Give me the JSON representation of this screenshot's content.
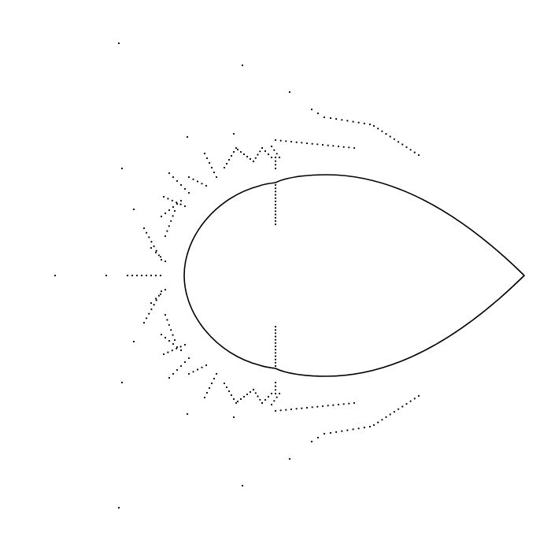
{
  "colors": {
    "background": "#ffffff",
    "ink": "#000000"
  },
  "figure": {
    "elements": [
      "teardrop-outline",
      "dotted-trajectories"
    ]
  }
}
